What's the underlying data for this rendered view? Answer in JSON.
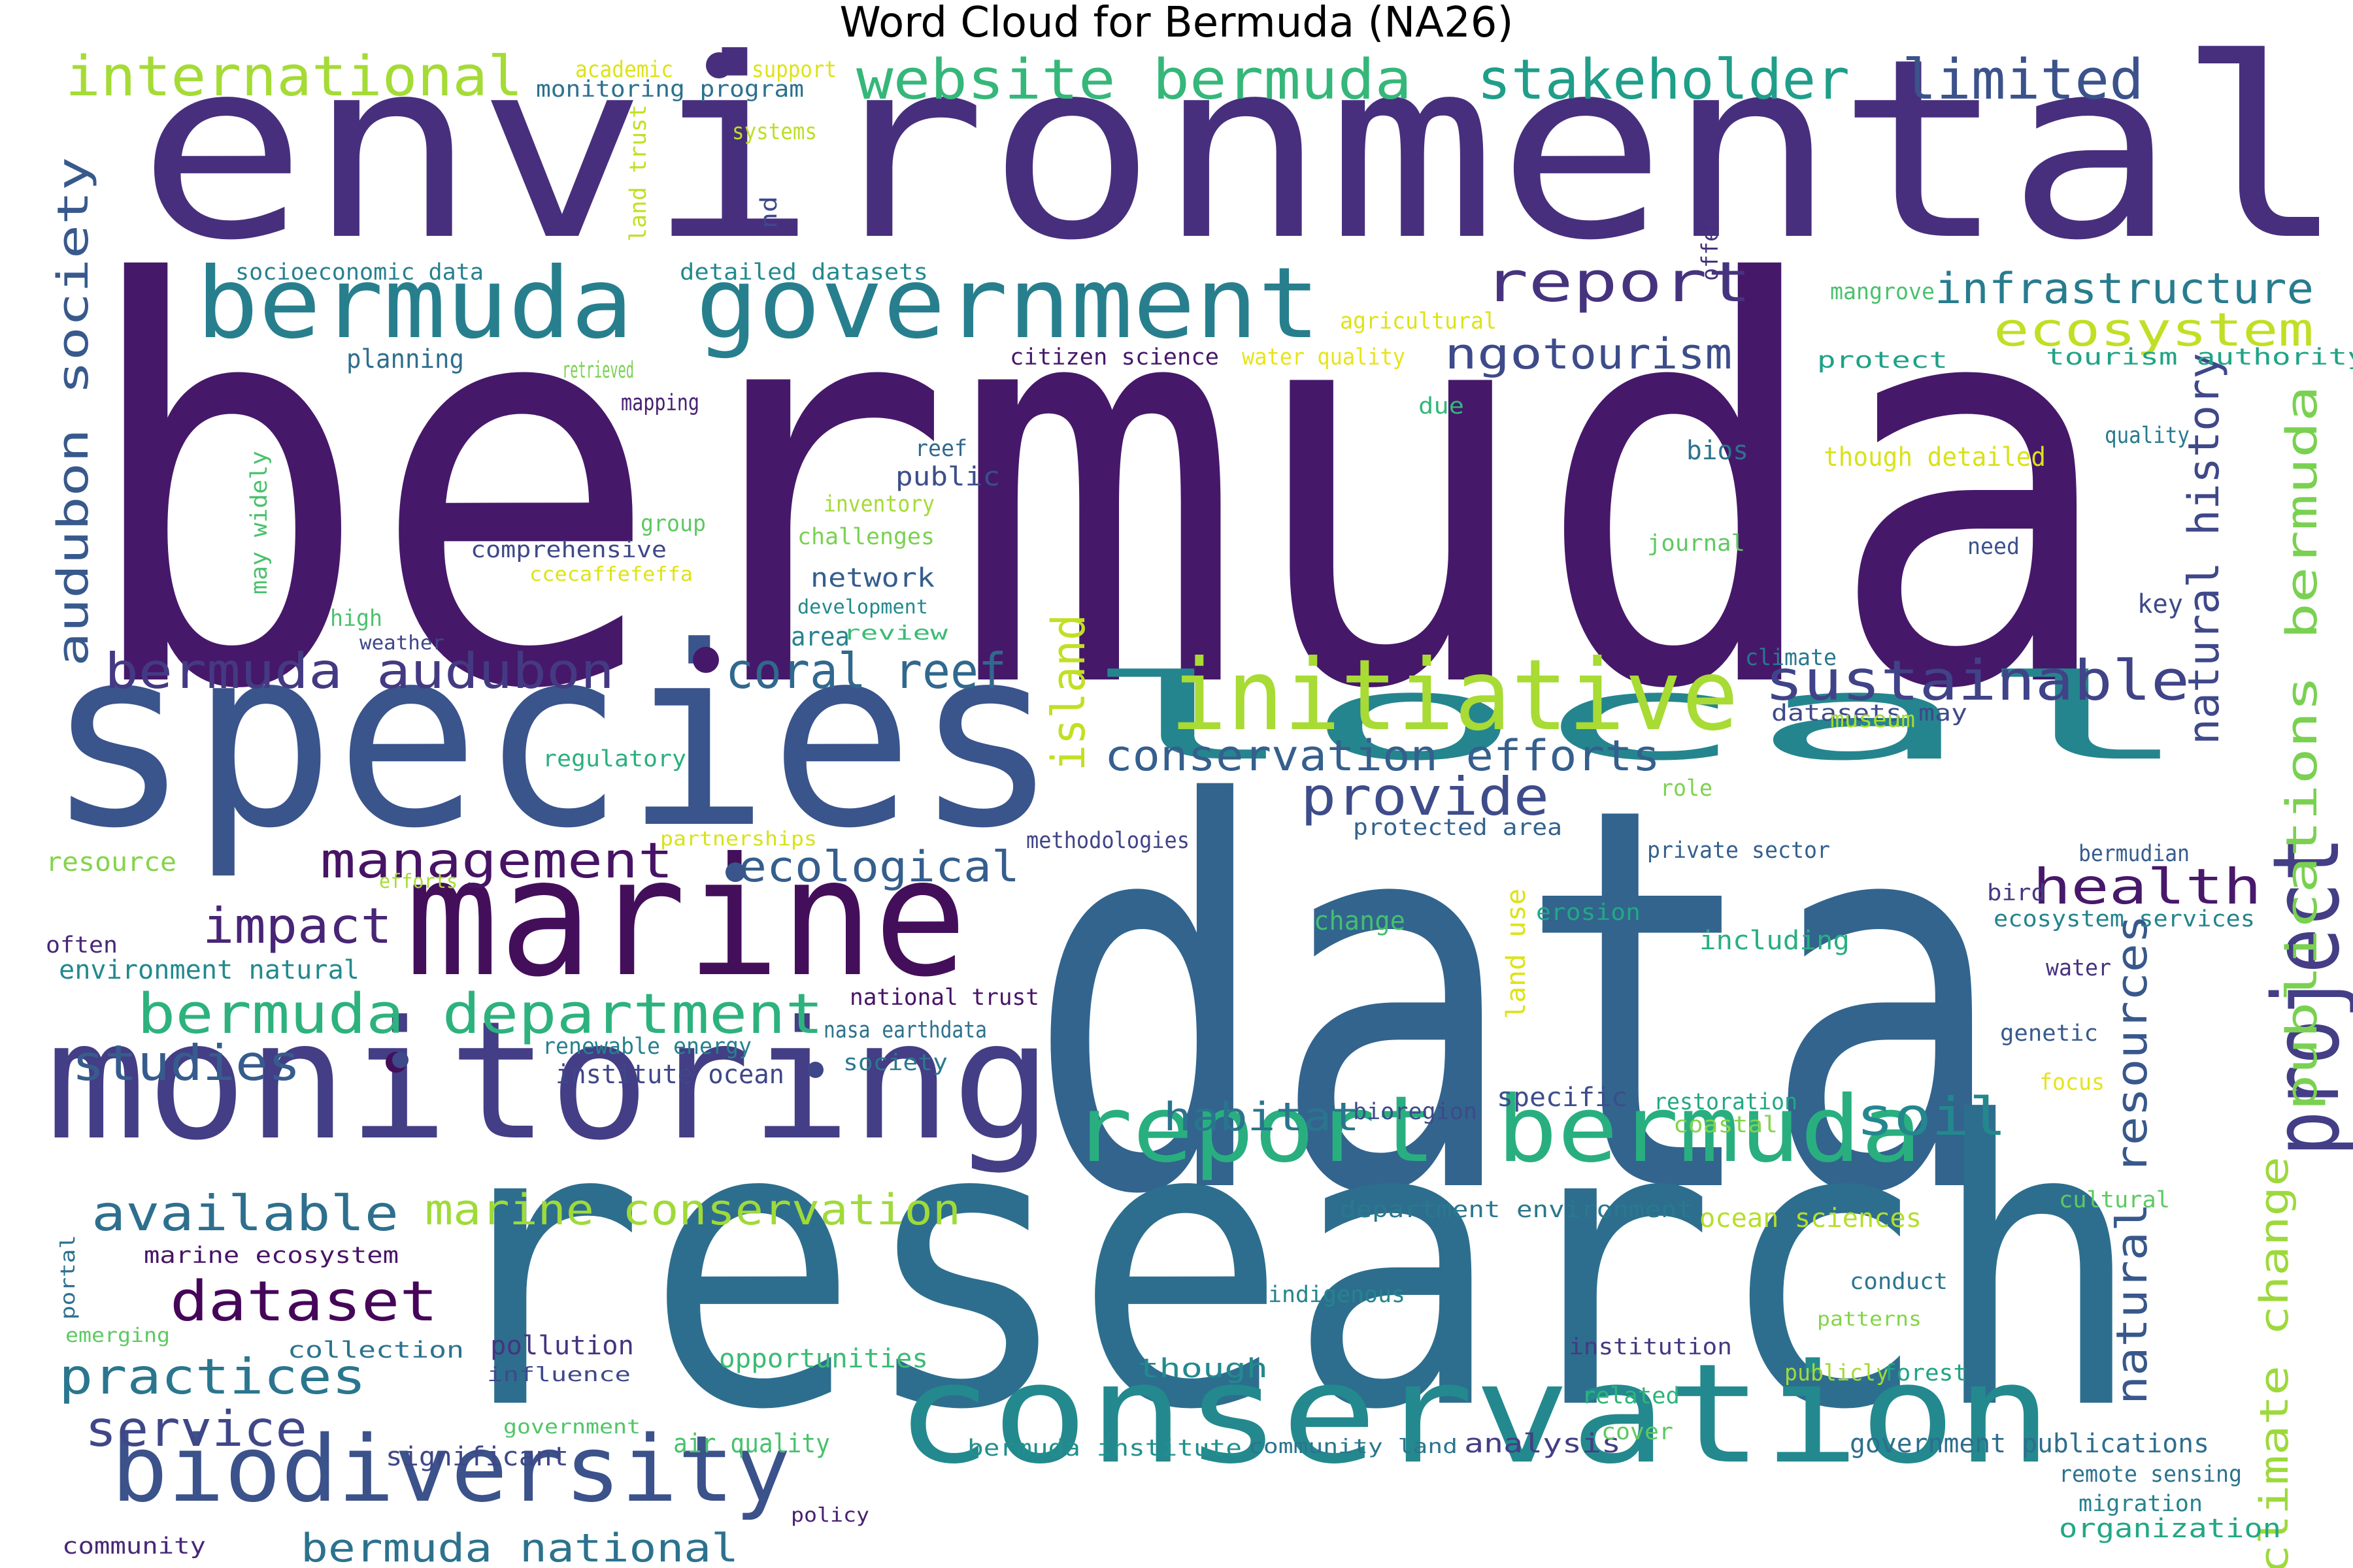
{
  "title": "Word Cloud for Bermuda (NA26)",
  "words": [
    {
      "text": "environmental",
      "color": "#472f7d"
    },
    {
      "text": "bermuda",
      "color": "#46186a"
    },
    {
      "text": "data",
      "color": "#32648e"
    },
    {
      "text": "research",
      "color": "#2d6e8e"
    },
    {
      "text": "species",
      "color": "#3a548c"
    },
    {
      "text": "monitoring",
      "color": "#433e85"
    },
    {
      "text": "marine",
      "color": "#440f5a"
    },
    {
      "text": "conservation",
      "color": "#23898e"
    },
    {
      "text": "local",
      "color": "#25858e"
    },
    {
      "text": "biodiversity",
      "color": "#3b528b"
    },
    {
      "text": "bermuda government",
      "color": "#277f8e"
    },
    {
      "text": "initiative",
      "color": "#a8db34"
    },
    {
      "text": "report bermuda",
      "color": "#29af7f"
    },
    {
      "text": "project",
      "color": "#433e85"
    },
    {
      "text": "international",
      "color": "#a5db36"
    },
    {
      "text": "website bermuda",
      "color": "#35b779"
    },
    {
      "text": "stakeholder",
      "color": "#1f9e89"
    },
    {
      "text": "limited",
      "color": "#3b528b"
    },
    {
      "text": "report",
      "color": "#46337e"
    },
    {
      "text": "infrastructure",
      "color": "#287c8e"
    },
    {
      "text": "ecosystem",
      "color": "#c0df25"
    },
    {
      "text": "tourism",
      "color": "#3d4d8a"
    },
    {
      "text": "ngo",
      "color": "#3e4a89"
    },
    {
      "text": "audubon society",
      "color": "#38598c"
    },
    {
      "text": "natural history",
      "color": "#3f4889"
    },
    {
      "text": "publications bermuda",
      "color": "#7ad151"
    },
    {
      "text": "bermuda audubon",
      "color": "#443a83"
    },
    {
      "text": "coral reef",
      "color": "#31688e"
    },
    {
      "text": "sustainable",
      "color": "#404387"
    },
    {
      "text": "island",
      "color": "#c2df23"
    },
    {
      "text": "conservation efforts",
      "color": "#355f8d"
    },
    {
      "text": "provide",
      "color": "#3e4c8a"
    },
    {
      "text": "management",
      "color": "#471365"
    },
    {
      "text": "ecological",
      "color": "#355e8d"
    },
    {
      "text": "health",
      "color": "#48186a"
    },
    {
      "text": "impact",
      "color": "#482576"
    },
    {
      "text": "bermuda department",
      "color": "#2db27d"
    },
    {
      "text": "studies",
      "color": "#365c8d"
    },
    {
      "text": "natural resources",
      "color": "#38588c"
    },
    {
      "text": "available",
      "color": "#2e6f8e"
    },
    {
      "text": "marine conservation",
      "color": "#a0da39"
    },
    {
      "text": "habitat",
      "color": "#2b748e"
    },
    {
      "text": "soil",
      "color": "#24878e"
    },
    {
      "text": "dataset",
      "color": "#450559"
    },
    {
      "text": "practices",
      "color": "#2a768e"
    },
    {
      "text": "service",
      "color": "#3f4788"
    },
    {
      "text": "climate change",
      "color": "#9dd93b"
    },
    {
      "text": "bermuda national",
      "color": "#2c728e"
    },
    {
      "text": "bermuda institute",
      "color": "#21908d"
    },
    {
      "text": "government publications",
      "color": "#2e6e8e"
    },
    {
      "text": "organization",
      "color": "#22a785"
    },
    {
      "text": "analysis",
      "color": "#433e85"
    },
    {
      "text": "significant",
      "color": "#3f4788"
    },
    {
      "text": "community",
      "color": "#482878"
    },
    {
      "text": "policy",
      "color": "#482071"
    },
    {
      "text": "air quality",
      "color": "#4ac16d"
    },
    {
      "text": "community land",
      "color": "#2b758e"
    },
    {
      "text": "opportunities",
      "color": "#3bbb75"
    },
    {
      "text": "though",
      "color": "#238a8d"
    },
    {
      "text": "pollution",
      "color": "#463480"
    },
    {
      "text": "collection",
      "color": "#2c738e"
    },
    {
      "text": "influence",
      "color": "#3e4a89"
    },
    {
      "text": "government",
      "color": "#52c569"
    },
    {
      "text": "emerging",
      "color": "#5ec962"
    },
    {
      "text": "portal",
      "color": "#2d708e"
    },
    {
      "text": "marine ecosystem",
      "color": "#481467"
    },
    {
      "text": "indigenous",
      "color": "#25848e"
    },
    {
      "text": "department environment",
      "color": "#2a788e"
    },
    {
      "text": "ocean sciences",
      "color": "#b5de2b"
    },
    {
      "text": "institution",
      "color": "#443983"
    },
    {
      "text": "related",
      "color": "#2fb47c"
    },
    {
      "text": "cover",
      "color": "#5ec962"
    },
    {
      "text": "publicly",
      "color": "#a2da37"
    },
    {
      "text": "forest",
      "color": "#20a386"
    },
    {
      "text": "patterns",
      "color": "#84d44b"
    },
    {
      "text": "conduct",
      "color": "#2b758e"
    },
    {
      "text": "remote sensing",
      "color": "#2c728e"
    },
    {
      "text": "migration",
      "color": "#26828e"
    },
    {
      "text": "cultural",
      "color": "#5ec962"
    },
    {
      "text": "focus",
      "color": "#e5e419"
    },
    {
      "text": "genetic",
      "color": "#38598c"
    },
    {
      "text": "water",
      "color": "#46327e"
    },
    {
      "text": "ecosystem services",
      "color": "#25838e"
    },
    {
      "text": "bird",
      "color": "#443983"
    },
    {
      "text": "bermudian",
      "color": "#365c8d"
    },
    {
      "text": "including",
      "color": "#29af7f"
    },
    {
      "text": "erosion",
      "color": "#22a884"
    },
    {
      "text": "land use",
      "color": "#dde318"
    },
    {
      "text": "change",
      "color": "#44bf70"
    },
    {
      "text": "private sector",
      "color": "#34608d"
    },
    {
      "text": "role",
      "color": "#7cd250"
    },
    {
      "text": "protected area",
      "color": "#33638d"
    },
    {
      "text": "methodologies",
      "color": "#414487"
    },
    {
      "text": "datasets may",
      "color": "#3e4989"
    },
    {
      "text": "museum",
      "color": "#a8db34"
    },
    {
      "text": "climate",
      "color": "#2a788e"
    },
    {
      "text": "key",
      "color": "#3f4889"
    },
    {
      "text": "journal",
      "color": "#5ec962"
    },
    {
      "text": "need",
      "color": "#3b528b"
    },
    {
      "text": "quality",
      "color": "#297a8e"
    },
    {
      "text": "though detailed",
      "color": "#d8e219"
    },
    {
      "text": "bios",
      "color": "#2c738e"
    },
    {
      "text": "due",
      "color": "#35b779"
    },
    {
      "text": "tourism authority",
      "color": "#20a486"
    },
    {
      "text": "protect",
      "color": "#1fa188"
    },
    {
      "text": "mangrove",
      "color": "#4ac16d"
    },
    {
      "text": "offer",
      "color": "#46337e"
    },
    {
      "text": "nd",
      "color": "#3e4989"
    },
    {
      "text": "land trust",
      "color": "#c2df23"
    },
    {
      "text": "systems",
      "color": "#bddf26"
    },
    {
      "text": "support",
      "color": "#dde318"
    },
    {
      "text": "academic",
      "color": "#dde318"
    },
    {
      "text": "monitoring program",
      "color": "#2c718e"
    },
    {
      "text": "socioeconomic data",
      "color": "#27808e"
    },
    {
      "text": "detailed datasets",
      "color": "#23898e"
    },
    {
      "text": "agricultural",
      "color": "#dde318"
    },
    {
      "text": "water quality",
      "color": "#e7e419"
    },
    {
      "text": "citizen science",
      "color": "#46186a"
    },
    {
      "text": "planning",
      "color": "#2e6e8e"
    },
    {
      "text": "retrieved",
      "color": "#7ad151"
    },
    {
      "text": "mapping",
      "color": "#482173"
    },
    {
      "text": "reef",
      "color": "#31688e"
    },
    {
      "text": "public",
      "color": "#3d4e8a"
    },
    {
      "text": "inventory",
      "color": "#a5db36"
    },
    {
      "text": "group",
      "color": "#5ec962"
    },
    {
      "text": "challenges",
      "color": "#7ad151"
    },
    {
      "text": "comprehensive",
      "color": "#3e4989"
    },
    {
      "text": "ccecaffefeffa",
      "color": "#dde318"
    },
    {
      "text": "network",
      "color": "#355e8d"
    },
    {
      "text": "development",
      "color": "#23898e"
    },
    {
      "text": "area",
      "color": "#26828e"
    },
    {
      "text": "review",
      "color": "#3bbb75"
    },
    {
      "text": "may widely",
      "color": "#4ac16d"
    },
    {
      "text": "high",
      "color": "#4ac16d"
    },
    {
      "text": "weather",
      "color": "#3f4788"
    },
    {
      "text": "regulatory",
      "color": "#2ab07f"
    },
    {
      "text": "partnerships",
      "color": "#d8e219"
    },
    {
      "text": "resource",
      "color": "#84d44b"
    },
    {
      "text": "efforts",
      "color": "#a8db34"
    },
    {
      "text": "often",
      "color": "#482878"
    },
    {
      "text": "environment natural",
      "color": "#23898e"
    },
    {
      "text": "national trust",
      "color": "#471365"
    },
    {
      "text": "nasa earthdata",
      "color": "#2c728e"
    },
    {
      "text": "renewable energy",
      "color": "#27808e"
    },
    {
      "text": "society",
      "color": "#2a788e"
    },
    {
      "text": "institute ocean",
      "color": "#3f4788"
    },
    {
      "text": "specific",
      "color": "#3d4d8a"
    },
    {
      "text": "bioregion",
      "color": "#3e4a89"
    },
    {
      "text": "restoration",
      "color": "#22a785"
    },
    {
      "text": "coastal",
      "color": "#84d44b"
    }
  ],
  "dots": [
    {
      "color": "#472f7d"
    },
    {
      "color": "#46186a"
    },
    {
      "color": "#3a548c"
    },
    {
      "color": "#440f5a"
    },
    {
      "color": "#3f4788"
    },
    {
      "color": "#3e4a89"
    }
  ]
}
